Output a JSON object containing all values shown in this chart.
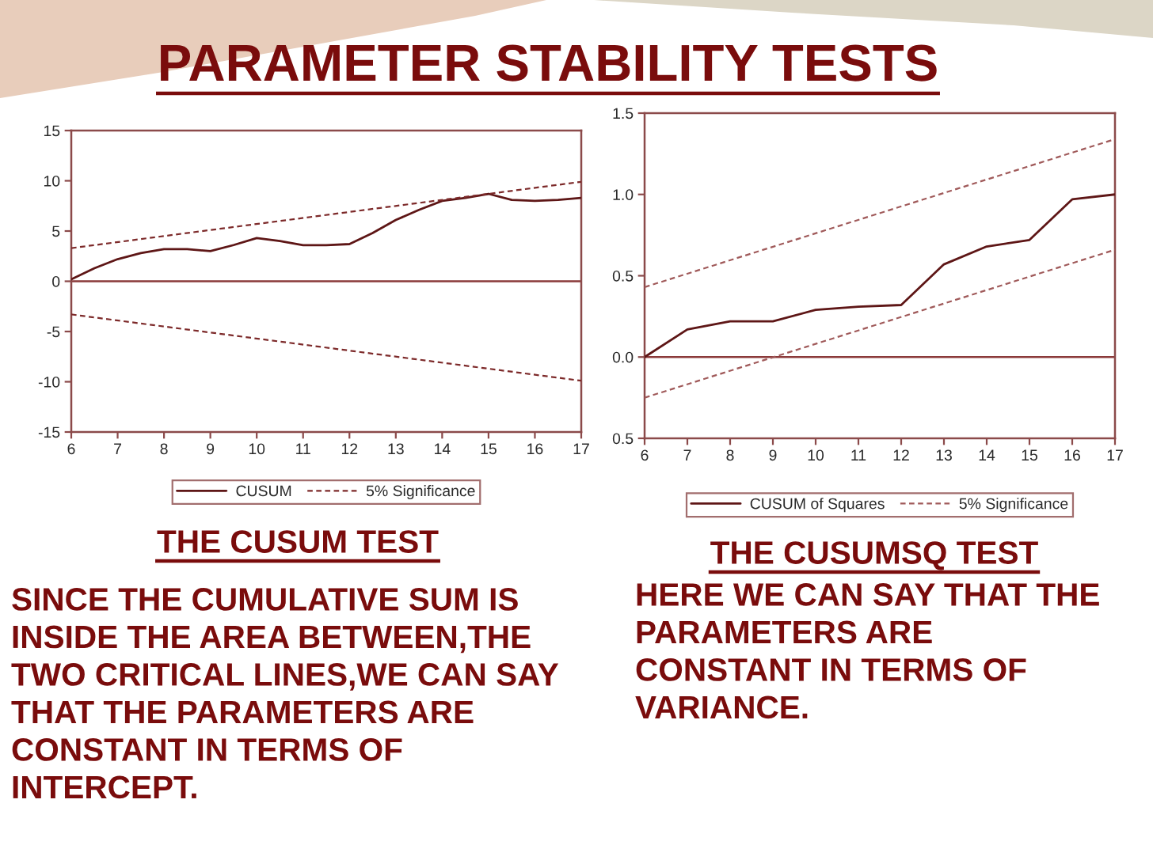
{
  "chart_data": [
    {
      "type": "line",
      "title": "PARAMETER STABILITY TESTS",
      "xlim": [
        6,
        17
      ],
      "xticks": [
        6,
        7,
        8,
        9,
        10,
        11,
        12,
        13,
        14,
        15,
        16,
        17
      ],
      "ylim": [
        -15,
        15
      ],
      "yticks": [
        -15,
        -10,
        -5,
        0,
        5,
        10,
        15
      ],
      "legend": "bottom",
      "ref_lines": [
        {
          "axis": "y",
          "value": 0,
          "color": "#8b3a3a"
        }
      ],
      "annotations": [
        "THE CUSUM TEST",
        "SINCE THE CUMULATIVE SUM IS\nINSIDE THE AREA BETWEEN,THE\nTWO CRITICAL LINES,WE CAN SAY\nTHAT THE PARAMETERS ARE\nCONSTANT IN TERMS OF\nINTERCEPT."
      ],
      "series": [
        {
          "name": "CUSUM",
          "color": "#5e1616",
          "x": [
            6,
            6.5,
            7,
            7.5,
            8,
            8.5,
            9,
            9.5,
            10,
            10.5,
            11,
            11.5,
            12,
            12.5,
            13,
            13.5,
            14,
            14.5,
            15,
            15.5,
            16,
            16.5,
            17
          ],
          "values": [
            0.2,
            1.3,
            2.2,
            2.8,
            3.2,
            3.2,
            3.0,
            3.6,
            4.3,
            4.0,
            3.6,
            3.6,
            3.7,
            4.8,
            6.1,
            7.1,
            8.0,
            8.3,
            8.7,
            8.1,
            8.0,
            8.1,
            8.3
          ]
        },
        {
          "name": "5% Significance",
          "color": "#7d2a2a",
          "line_style": "dashed",
          "x": [
            6,
            17
          ],
          "values": [
            3.3,
            9.9
          ]
        },
        {
          "color": "#7d2a2a",
          "line_style": "dashed",
          "x": [
            6,
            17
          ],
          "values": [
            -3.3,
            -9.9
          ]
        }
      ]
    },
    {
      "type": "line",
      "xlim": [
        6,
        17
      ],
      "xticks": [
        6,
        7,
        8,
        9,
        10,
        11,
        12,
        13,
        14,
        15,
        16,
        17
      ],
      "ylim": [
        -0.5,
        1.5
      ],
      "yticks": [
        {
          "value": -0.5,
          "label": "0.5"
        },
        {
          "value": 0,
          "label": "0.0"
        },
        {
          "value": 0.5,
          "label": "0.5"
        },
        {
          "value": 1,
          "label": "1.0"
        },
        {
          "value": 1.5,
          "label": "1.5"
        }
      ],
      "legend": "bottom",
      "ref_lines": [
        {
          "axis": "y",
          "value": 0,
          "color": "#8b3a3a"
        }
      ],
      "annotations": [
        "THE CUSUMSQ TEST",
        "HERE WE CAN SAY THAT THE\nPARAMETERS ARE\nCONSTANT IN TERMS OF\nVARIANCE."
      ],
      "series": [
        {
          "name": "CUSUM of Squares",
          "color": "#5e1616",
          "x": [
            6,
            7,
            8,
            9,
            10,
            11,
            12,
            13,
            14,
            15,
            16,
            17
          ],
          "values": [
            0.0,
            0.17,
            0.22,
            0.22,
            0.29,
            0.31,
            0.32,
            0.57,
            0.68,
            0.72,
            0.97,
            1.0
          ]
        },
        {
          "name": "5% Significance",
          "color": "#a05a5a",
          "line_style": "dashed",
          "x": [
            6,
            17
          ],
          "values": [
            0.43,
            1.34
          ]
        },
        {
          "color": "#a05a5a",
          "line_style": "dashed",
          "x": [
            6,
            17
          ],
          "values": [
            -0.25,
            0.66
          ]
        }
      ]
    }
  ]
}
